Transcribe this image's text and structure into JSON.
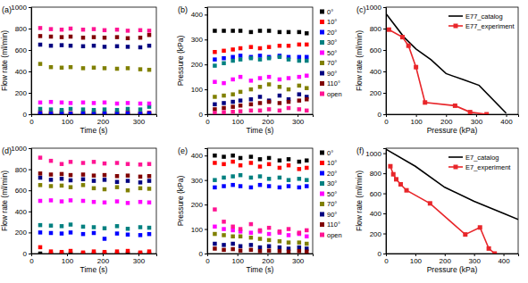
{
  "chart_data": [
    {
      "type": "scatter",
      "title": "(a)",
      "xlabel": "Time (s)",
      "ylabel": "Flow rate (ml/min)",
      "marker": "square",
      "xlim": [
        0,
        350
      ],
      "xticks": [
        0,
        100,
        200,
        300
      ],
      "ylim": [
        0,
        1000
      ],
      "yticks": [
        0,
        200,
        400,
        600,
        800,
        1000
      ],
      "x": [
        25,
        55,
        85,
        110,
        145,
        175,
        205,
        240,
        270,
        305,
        330
      ],
      "series": [
        {
          "color": "#000000",
          "values": [
            0,
            0,
            0,
            0,
            0,
            0,
            0,
            0,
            0,
            0,
            0
          ]
        },
        {
          "color": "#ff0000",
          "values": [
            20,
            15,
            25,
            10,
            15,
            20,
            10,
            15,
            20,
            10,
            15
          ]
        },
        {
          "color": "#0000ff",
          "values": [
            10,
            5,
            10,
            5,
            10,
            5,
            10,
            5,
            10,
            5,
            10
          ]
        },
        {
          "color": "#008080",
          "values": [
            50,
            45,
            40,
            50,
            45,
            40,
            45,
            40,
            50,
            45,
            70
          ]
        },
        {
          "color": "#ff00ff",
          "values": [
            110,
            115,
            110,
            105,
            110,
            105,
            110,
            100,
            105,
            100,
            100
          ]
        },
        {
          "color": "#808000",
          "values": [
            470,
            440,
            435,
            440,
            430,
            435,
            430,
            425,
            430,
            420,
            415
          ]
        },
        {
          "color": "#000080",
          "values": [
            650,
            640,
            645,
            640,
            635,
            640,
            630,
            635,
            630,
            625,
            640
          ]
        },
        {
          "color": "#800000",
          "values": [
            730,
            725,
            720,
            725,
            715,
            720,
            715,
            720,
            710,
            715,
            740
          ]
        },
        {
          "color": "#ff1493",
          "values": [
            805,
            795,
            790,
            800,
            790,
            795,
            785,
            790,
            780,
            785,
            780
          ]
        }
      ]
    },
    {
      "type": "scatter",
      "title": "(b)",
      "xlabel": "Time (s)",
      "ylabel": "Pressure (kPa)",
      "marker": "square",
      "legend": "right",
      "xlim": [
        0,
        350
      ],
      "xticks": [
        0,
        100,
        200,
        300
      ],
      "ylim": [
        0,
        430
      ],
      "yticks": [
        0,
        100,
        200,
        300,
        400
      ],
      "x": [
        25,
        55,
        85,
        110,
        145,
        175,
        205,
        240,
        270,
        305,
        330
      ],
      "series": [
        {
          "name": "0°",
          "color": "#000000",
          "values": [
            335,
            335,
            335,
            335,
            330,
            335,
            335,
            330,
            330,
            330,
            325
          ]
        },
        {
          "name": "10°",
          "color": "#ff0000",
          "values": [
            250,
            255,
            260,
            265,
            270,
            265,
            270,
            275,
            275,
            280,
            280
          ]
        },
        {
          "name": "20°",
          "color": "#0000ff",
          "values": [
            220,
            225,
            230,
            235,
            230,
            235,
            230,
            235,
            230,
            230,
            230
          ]
        },
        {
          "name": "30°",
          "color": "#008080",
          "values": [
            195,
            205,
            215,
            220,
            225,
            220,
            225,
            230,
            220,
            215,
            215
          ]
        },
        {
          "name": "50°",
          "color": "#ff00ff",
          "values": [
            130,
            125,
            140,
            150,
            135,
            145,
            150,
            140,
            145,
            150,
            155
          ]
        },
        {
          "name": "70°",
          "color": "#808000",
          "values": [
            70,
            75,
            80,
            90,
            100,
            110,
            120,
            110,
            100,
            115,
            105
          ]
        },
        {
          "name": "90°",
          "color": "#000080",
          "values": [
            40,
            45,
            50,
            55,
            60,
            70,
            55,
            75,
            60,
            80,
            70
          ]
        },
        {
          "name": "110°",
          "color": "#800000",
          "values": [
            20,
            25,
            30,
            35,
            40,
            45,
            50,
            45,
            50,
            55,
            60
          ]
        },
        {
          "name": "open",
          "color": "#ff1493",
          "values": [
            5,
            8,
            10,
            12,
            15,
            15,
            20,
            15,
            25,
            20,
            15
          ]
        }
      ]
    },
    {
      "type": "line",
      "title": "(c)",
      "xlabel": "Pressure (kPa)",
      "ylabel": "Flow rate (ml/min)",
      "legend": "upper right",
      "xlim": [
        0,
        440
      ],
      "xticks": [
        0,
        100,
        200,
        300,
        400
      ],
      "ylim": [
        0,
        1000
      ],
      "yticks": [
        0,
        200,
        400,
        600,
        800,
        1000
      ],
      "series": [
        {
          "name": "E77_catalog",
          "color": "#000000",
          "line_style": "solid",
          "x": [
            0,
            60,
            100,
            150,
            200,
            260,
            310,
            400
          ],
          "values": [
            940,
            720,
            610,
            510,
            380,
            320,
            270,
            10
          ]
        },
        {
          "name": "E77_experiment",
          "color": "#e8262a",
          "line_style": "solid",
          "marker": "square",
          "x": [
            10,
            55,
            75,
            100,
            130,
            230,
            280,
            335
          ],
          "values": [
            790,
            720,
            640,
            440,
            110,
            80,
            20,
            0
          ]
        }
      ]
    },
    {
      "type": "scatter",
      "title": "(d)",
      "xlabel": "Time (s)",
      "ylabel": "Flow rate (ml/min)",
      "marker": "square",
      "xlim": [
        0,
        350
      ],
      "xticks": [
        0,
        100,
        200,
        300
      ],
      "ylim": [
        0,
        1000
      ],
      "yticks": [
        0,
        200,
        400,
        600,
        800,
        1000
      ],
      "x": [
        25,
        55,
        85,
        110,
        145,
        175,
        205,
        240,
        270,
        305,
        330
      ],
      "series": [
        {
          "color": "#000000",
          "values": [
            0,
            0,
            0,
            0,
            0,
            0,
            0,
            0,
            0,
            0,
            0
          ]
        },
        {
          "color": "#ff0000",
          "values": [
            60,
            20,
            15,
            25,
            10,
            20,
            15,
            20,
            25,
            10,
            20
          ]
        },
        {
          "color": "#0000ff",
          "values": [
            200,
            195,
            190,
            200,
            185,
            195,
            140,
            190,
            180,
            175,
            185
          ]
        },
        {
          "color": "#008080",
          "values": [
            270,
            265,
            260,
            275,
            255,
            250,
            240,
            260,
            235,
            250,
            245
          ]
        },
        {
          "color": "#ff00ff",
          "values": [
            500,
            505,
            495,
            505,
            500,
            490,
            485,
            495,
            480,
            490,
            485
          ]
        },
        {
          "color": "#808000",
          "values": [
            650,
            640,
            645,
            630,
            650,
            620,
            610,
            630,
            600,
            620,
            615
          ]
        },
        {
          "color": "#000080",
          "values": [
            720,
            700,
            710,
            695,
            705,
            690,
            700,
            680,
            690,
            675,
            690
          ]
        },
        {
          "color": "#800000",
          "values": [
            760,
            750,
            755,
            745,
            750,
            740,
            745,
            735,
            740,
            730,
            735
          ]
        },
        {
          "color": "#ff1493",
          "values": [
            910,
            880,
            850,
            870,
            860,
            870,
            855,
            860,
            850,
            845,
            850
          ]
        }
      ]
    },
    {
      "type": "scatter",
      "title": "(e)",
      "xlabel": "Time (s)",
      "ylabel": "Pressure (kPa)",
      "marker": "square",
      "legend": "right",
      "xlim": [
        0,
        350
      ],
      "xticks": [
        0,
        100,
        200,
        300
      ],
      "ylim": [
        0,
        430
      ],
      "yticks": [
        0,
        100,
        200,
        300,
        400
      ],
      "x": [
        25,
        55,
        85,
        110,
        145,
        175,
        205,
        240,
        270,
        305,
        330
      ],
      "series": [
        {
          "name": "0°",
          "color": "#000000",
          "values": [
            400,
            395,
            400,
            390,
            395,
            385,
            390,
            380,
            385,
            375,
            380
          ]
        },
        {
          "name": "10°",
          "color": "#ff0000",
          "values": [
            370,
            365,
            375,
            360,
            370,
            355,
            365,
            350,
            360,
            345,
            350
          ]
        },
        {
          "name": "20°",
          "color": "#0000ff",
          "values": [
            270,
            275,
            280,
            275,
            270,
            280,
            275,
            270,
            275,
            270,
            275
          ]
        },
        {
          "name": "30°",
          "color": "#008080",
          "values": [
            300,
            310,
            315,
            320,
            310,
            315,
            305,
            310,
            300,
            305,
            300
          ]
        },
        {
          "name": "50°",
          "color": "#ff00ff",
          "values": [
            110,
            100,
            95,
            90,
            85,
            90,
            80,
            85,
            75,
            80,
            70
          ]
        },
        {
          "name": "70°",
          "color": "#808000",
          "values": [
            80,
            75,
            70,
            70,
            65,
            60,
            55,
            50,
            45,
            45,
            40
          ]
        },
        {
          "name": "90°",
          "color": "#000080",
          "values": [
            40,
            35,
            40,
            30,
            35,
            25,
            30,
            25,
            20,
            25,
            20
          ]
        },
        {
          "name": "110°",
          "color": "#800000",
          "values": [
            20,
            15,
            18,
            12,
            15,
            10,
            12,
            10,
            8,
            10,
            8
          ]
        },
        {
          "name": "open",
          "color": "#ff1493",
          "values": [
            180,
            130,
            110,
            100,
            120,
            95,
            105,
            90,
            100,
            85,
            95
          ]
        }
      ]
    },
    {
      "type": "line",
      "title": "(f)",
      "xlabel": "Pressure (kPa)",
      "ylabel": "Flow rate (ml/min)",
      "legend": "upper right",
      "xlim": [
        0,
        450
      ],
      "xticks": [
        0,
        100,
        200,
        300,
        400
      ],
      "ylim": [
        0,
        1050
      ],
      "yticks": [
        0,
        200,
        400,
        600,
        800,
        1000
      ],
      "series": [
        {
          "name": "E7_catalog",
          "color": "#000000",
          "line_style": "solid",
          "x": [
            0,
            100,
            200,
            300,
            400,
            450
          ],
          "values": [
            1040,
            870,
            660,
            520,
            400,
            340
          ]
        },
        {
          "name": "E7_experiment",
          "color": "#e8262a",
          "line_style": "solid",
          "marker": "square",
          "x": [
            15,
            25,
            35,
            50,
            70,
            150,
            270,
            320,
            350,
            370
          ],
          "values": [
            870,
            790,
            740,
            690,
            630,
            500,
            190,
            260,
            50,
            0
          ]
        }
      ]
    }
  ]
}
